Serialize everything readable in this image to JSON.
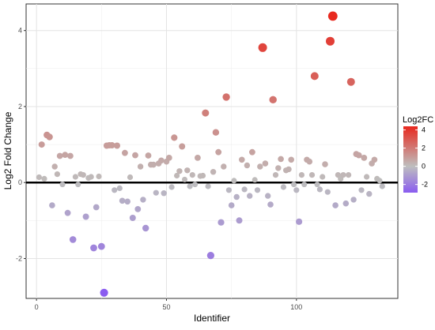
{
  "chart_data": {
    "type": "scatter",
    "xlabel": "Identifier",
    "ylabel": "Log2 Fold Change",
    "xlim": [
      -4,
      139
    ],
    "ylim": [
      -3.05,
      4.7
    ],
    "xticks": [
      0,
      50,
      100
    ],
    "xtick_labels": [
      "0",
      "50",
      "100"
    ],
    "yticks": [
      -2,
      0,
      2,
      4
    ],
    "ytick_labels": [
      "-2",
      "0",
      "2",
      "4"
    ],
    "grid": true,
    "zero_line": 0,
    "legend": {
      "title": "Log2FC",
      "position": "right",
      "breaks": [
        4,
        2,
        0,
        -2
      ],
      "break_labels": [
        "4",
        "2",
        "0",
        "-2"
      ],
      "range": [
        -2.9,
        4.4
      ],
      "colors": {
        "low": "#8a5cf0",
        "mid": "#bebebe",
        "high": "#e8281e"
      }
    },
    "x": [
      1,
      2,
      3,
      4,
      5,
      6,
      7,
      8,
      9,
      10,
      11,
      12,
      13,
      14,
      15,
      16,
      17,
      18,
      19,
      20,
      21,
      22,
      23,
      24,
      25,
      26,
      27,
      28,
      29,
      30,
      31,
      32,
      33,
      34,
      35,
      36,
      37,
      38,
      39,
      40,
      41,
      42,
      43,
      44,
      45,
      46,
      47,
      48,
      49,
      50,
      51,
      52,
      53,
      54,
      55,
      56,
      57,
      58,
      59,
      60,
      61,
      62,
      63,
      64,
      65,
      66,
      67,
      68,
      69,
      70,
      71,
      72,
      73,
      74,
      75,
      76,
      77,
      78,
      79,
      80,
      81,
      82,
      83,
      84,
      85,
      86,
      87,
      88,
      89,
      90,
      91,
      92,
      93,
      94,
      95,
      96,
      97,
      98,
      99,
      100,
      101,
      102,
      103,
      104,
      105,
      106,
      107,
      108,
      109,
      110,
      111,
      112,
      113,
      114,
      115,
      116,
      117,
      118,
      119,
      120,
      121,
      122,
      123,
      124,
      125,
      126,
      127,
      128,
      129,
      130,
      131,
      132,
      133
    ],
    "y": [
      0.14,
      1.0,
      0.1,
      1.25,
      1.2,
      -0.6,
      0.42,
      0.22,
      0.7,
      -0.05,
      0.73,
      -0.8,
      0.7,
      -1.5,
      0.15,
      -0.05,
      0.22,
      0.2,
      -0.9,
      0.12,
      0.15,
      -1.72,
      -0.65,
      0.16,
      -1.68,
      -2.9,
      0.97,
      0.98,
      0.98,
      -0.2,
      0.97,
      -0.15,
      -0.48,
      0.78,
      -0.5,
      0.14,
      -0.93,
      0.72,
      -0.7,
      0.42,
      -0.45,
      -1.2,
      0.71,
      0.47,
      0.47,
      -0.27,
      0.5,
      0.58,
      -0.28,
      0.55,
      0.65,
      -0.12,
      1.18,
      0.18,
      0.3,
      0.95,
      0.08,
      0.32,
      -0.1,
      0.2,
      -0.05,
      0.65,
      0.17,
      0.18,
      1.83,
      -0.1,
      -1.92,
      0.28,
      1.32,
      0.8,
      -1.05,
      0.42,
      2.25,
      -0.2,
      -0.6,
      0.05,
      -0.38,
      -1.0,
      0.6,
      -0.18,
      0.45,
      -0.35,
      0.8,
      0.07,
      -0.2,
      0.42,
      3.55,
      0.5,
      -0.35,
      -0.58,
      2.18,
      0.2,
      0.38,
      0.62,
      -0.12,
      0.32,
      0.35,
      0.6,
      -0.05,
      -0.2,
      -1.03,
      0.2,
      -0.05,
      0.6,
      0.55,
      0.2,
      2.8,
      -0.05,
      -0.18,
      0.15,
      0.48,
      -0.25,
      3.72,
      4.38,
      -0.6,
      0.2,
      0.1,
      0.2,
      -0.55,
      0.2,
      2.65,
      -0.45,
      0.75,
      0.72,
      -0.2,
      0.65,
      0.15,
      -0.3,
      0.5,
      0.6,
      0.1,
      0.05,
      -0.1
    ]
  }
}
